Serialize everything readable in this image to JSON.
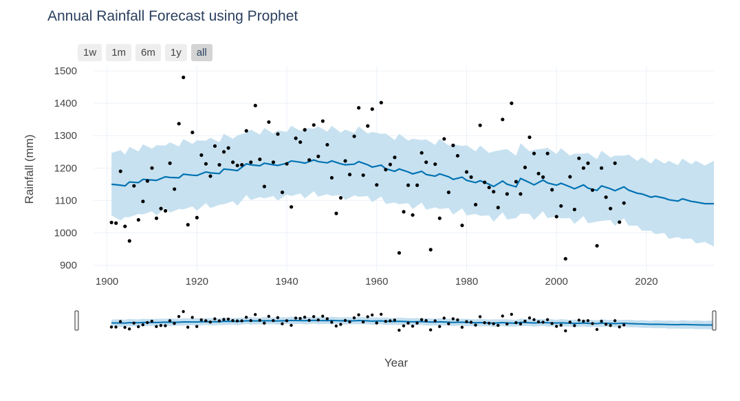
{
  "title": "Annual Rainfall Forecast using Prophet",
  "range_buttons": [
    "1w",
    "1m",
    "6m",
    "1y",
    "all"
  ],
  "active_range": "all",
  "chart_data": {
    "type": "line",
    "title": "Annual Rainfall Forecast using Prophet",
    "xlabel": "Year",
    "ylabel": "Rainfall (mm)",
    "xlim": [
      1897,
      2035
    ],
    "ylim": [
      880,
      1515
    ],
    "x_ticks": [
      1900,
      1920,
      1940,
      1960,
      1980,
      2000,
      2020
    ],
    "y_ticks": [
      900,
      1000,
      1100,
      1200,
      1300,
      1400,
      1500
    ],
    "grid": true,
    "legend": "none",
    "colors": {
      "forecast_line": "#0072B2",
      "uncertainty_band": "#c4dfef",
      "observed_points": "#000000",
      "grid": "#ebf0f8"
    },
    "range_slider": true,
    "observed": {
      "x": [
        1901,
        1902,
        1903,
        1904,
        1905,
        1906,
        1907,
        1908,
        1909,
        1910,
        1911,
        1912,
        1913,
        1914,
        1915,
        1916,
        1917,
        1918,
        1919,
        1920,
        1921,
        1922,
        1923,
        1924,
        1925,
        1926,
        1927,
        1928,
        1929,
        1930,
        1931,
        1932,
        1933,
        1934,
        1935,
        1936,
        1937,
        1938,
        1939,
        1940,
        1941,
        1942,
        1943,
        1944,
        1945,
        1946,
        1947,
        1948,
        1949,
        1950,
        1951,
        1952,
        1953,
        1954,
        1955,
        1956,
        1957,
        1958,
        1959,
        1960,
        1961,
        1962,
        1963,
        1964,
        1965,
        1966,
        1967,
        1968,
        1969,
        1970,
        1971,
        1972,
        1973,
        1974,
        1975,
        1976,
        1977,
        1978,
        1979,
        1980,
        1981,
        1982,
        1983,
        1984,
        1985,
        1986,
        1987,
        1988,
        1989,
        1990,
        1991,
        1992,
        1993,
        1994,
        1995,
        1996,
        1997,
        1998,
        1999,
        2000,
        2001,
        2002,
        2003,
        2004,
        2005,
        2006,
        2007,
        2008,
        2009,
        2010,
        2011,
        2012,
        2013,
        2014,
        2015
      ],
      "y": [
        1032,
        1030,
        1190,
        1020,
        975,
        1145,
        1040,
        1097,
        1160,
        1200,
        1045,
        1075,
        1068,
        1215,
        1135,
        1337,
        1480,
        1025,
        1310,
        1047,
        1240,
        1213,
        1175,
        1268,
        1210,
        1250,
        1262,
        1218,
        1208,
        1210,
        1315,
        1218,
        1393,
        1227,
        1143,
        1342,
        1218,
        1305,
        1125,
        1213,
        1080,
        1292,
        1280,
        1318,
        1225,
        1333,
        1236,
        1345,
        1272,
        1170,
        1060,
        1108,
        1222,
        1180,
        1298,
        1386,
        1178,
        1330,
        1382,
        1148,
        1402,
        1195,
        1211,
        1233,
        938,
        1065,
        1147,
        1055,
        1147,
        1247,
        1218,
        948,
        1212,
        1045,
        1290,
        1125,
        1270,
        1238,
        1023,
        1188,
        1172,
        1087,
        1332,
        1156,
        1140,
        1127,
        1078,
        1350,
        1120,
        1400,
        1158,
        1120,
        1202,
        1295,
        1245,
        1183,
        1172,
        1245,
        1133,
        1050,
        1083,
        920,
        1173,
        1072,
        1230,
        1200,
        1215,
        1132,
        960,
        1200,
        1110,
        1075,
        1215,
        1033,
        1092
      ]
    },
    "forecast": {
      "x": [
        1901,
        1903,
        1904,
        1905,
        1907,
        1908,
        1910,
        1911,
        1913,
        1914,
        1916,
        1917,
        1919,
        1920,
        1922,
        1923,
        1925,
        1926,
        1928,
        1929,
        1931,
        1932,
        1934,
        1935,
        1937,
        1938,
        1940,
        1941,
        1943,
        1944,
        1946,
        1947,
        1949,
        1950,
        1952,
        1953,
        1955,
        1956,
        1958,
        1959,
        1961,
        1962,
        1964,
        1965,
        1967,
        1968,
        1970,
        1971,
        1973,
        1974,
        1976,
        1977,
        1979,
        1980,
        1982,
        1983,
        1985,
        1986,
        1988,
        1989,
        1991,
        1992,
        1994,
        1995,
        1997,
        1998,
        2000,
        2001,
        2003,
        2004,
        2006,
        2007,
        2009,
        2010,
        2012,
        2013,
        2015,
        2016,
        2018,
        2019,
        2021,
        2022,
        2024,
        2025,
        2027,
        2028,
        2030,
        2031,
        2033,
        2035
      ],
      "yhat": [
        1150,
        1147,
        1145,
        1157,
        1155,
        1165,
        1163,
        1162,
        1173,
        1171,
        1170,
        1181,
        1178,
        1177,
        1188,
        1185,
        1183,
        1197,
        1194,
        1192,
        1213,
        1210,
        1207,
        1215,
        1210,
        1208,
        1215,
        1222,
        1218,
        1215,
        1225,
        1220,
        1216,
        1222,
        1213,
        1210,
        1212,
        1220,
        1210,
        1203,
        1209,
        1198,
        1190,
        1197,
        1188,
        1182,
        1190,
        1180,
        1175,
        1182,
        1173,
        1165,
        1172,
        1162,
        1155,
        1161,
        1150,
        1143,
        1160,
        1150,
        1142,
        1168,
        1155,
        1148,
        1163,
        1154,
        1147,
        1153,
        1142,
        1136,
        1148,
        1138,
        1131,
        1145,
        1136,
        1130,
        1142,
        1132,
        1122,
        1120,
        1110,
        1113,
        1107,
        1102,
        1098,
        1105,
        1097,
        1095,
        1090,
        1090
      ],
      "band_width": 205
    },
    "range_slider_window": [
      1897,
      2035
    ]
  }
}
